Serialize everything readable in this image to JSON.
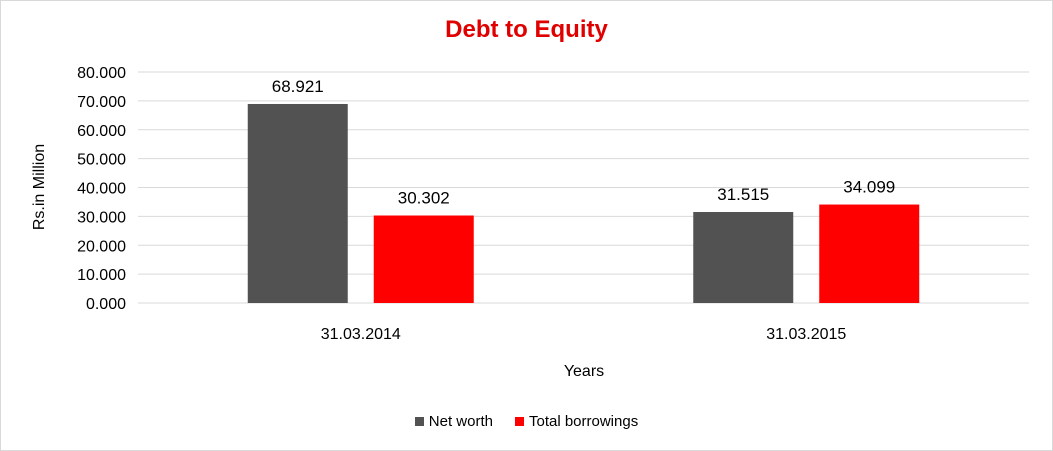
{
  "chart_data": {
    "type": "bar",
    "title": "Debt to Equity",
    "xlabel": "Years",
    "ylabel": "Rs.in Million",
    "categories": [
      "31.03.2014",
      "31.03.2015"
    ],
    "series": [
      {
        "name": "Net worth",
        "values": [
          68.921,
          31.515
        ],
        "labels": [
          "68.921",
          "31.515"
        ],
        "color": "#525252"
      },
      {
        "name": "Total borrowings",
        "values": [
          30.302,
          34.099
        ],
        "labels": [
          "30.302",
          "34.099"
        ],
        "color": "#ff0000"
      }
    ],
    "ylim": [
      0,
      80
    ],
    "yticks": [
      0,
      10,
      20,
      30,
      40,
      50,
      60,
      70,
      80
    ],
    "ytick_labels": [
      "0.000",
      "10.000",
      "20.000",
      "30.000",
      "40.000",
      "50.000",
      "60.000",
      "70.000",
      "80.000"
    ],
    "grid": true,
    "legend_position": "bottom"
  },
  "colors": {
    "title": "#e00000",
    "grid": "#d9d9d9"
  }
}
